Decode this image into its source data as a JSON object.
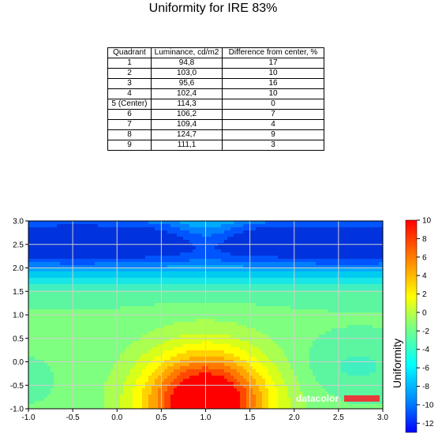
{
  "chart_data": {
    "type": "contour",
    "title": "Uniformity for IRE 83%",
    "table": {
      "headers": [
        "Quadrant",
        "Luminance, cd/m2",
        "Difference from center, %"
      ],
      "rows": [
        [
          "1",
          "94,8",
          "17"
        ],
        [
          "2",
          "103,0",
          "10"
        ],
        [
          "3",
          "95,6",
          "16"
        ],
        [
          "4",
          "102,4",
          "10"
        ],
        [
          "5 (Center)",
          "114,3",
          "0"
        ],
        [
          "6",
          "106,2",
          "7"
        ],
        [
          "7",
          "109,4",
          "4"
        ],
        [
          "8",
          "124,7",
          "9"
        ],
        [
          "9",
          "111,1",
          "3"
        ]
      ]
    },
    "x_ticks": [
      "-1.0",
      "-0.5",
      "0.0",
      "0.5",
      "1.0",
      "1.5",
      "2.0",
      "2.5",
      "3.0"
    ],
    "y_ticks": [
      "-1.0",
      "-0.5",
      "0.0",
      "0.5",
      "1.0",
      "1.5",
      "2.0",
      "2.5",
      "3.0"
    ],
    "xlim": [
      -1,
      3
    ],
    "ylim": [
      -1,
      3
    ],
    "colorbar": {
      "label": "Uniformity",
      "ticks": [
        "10",
        "8",
        "6",
        "4",
        "2",
        "0",
        "-2",
        "-4",
        "-6",
        "-8",
        "-10",
        "-12"
      ],
      "range": [
        -13,
        10
      ],
      "colors": [
        "#ff0000",
        "#ff4000",
        "#ff8000",
        "#ffbf00",
        "#ffff00",
        "#bfff00",
        "#7fff7f",
        "#40ffbf",
        "#00ffff",
        "#00bfff",
        "#0080ff",
        "#0040ff"
      ]
    },
    "grid": true,
    "watermark": "datacolor"
  }
}
